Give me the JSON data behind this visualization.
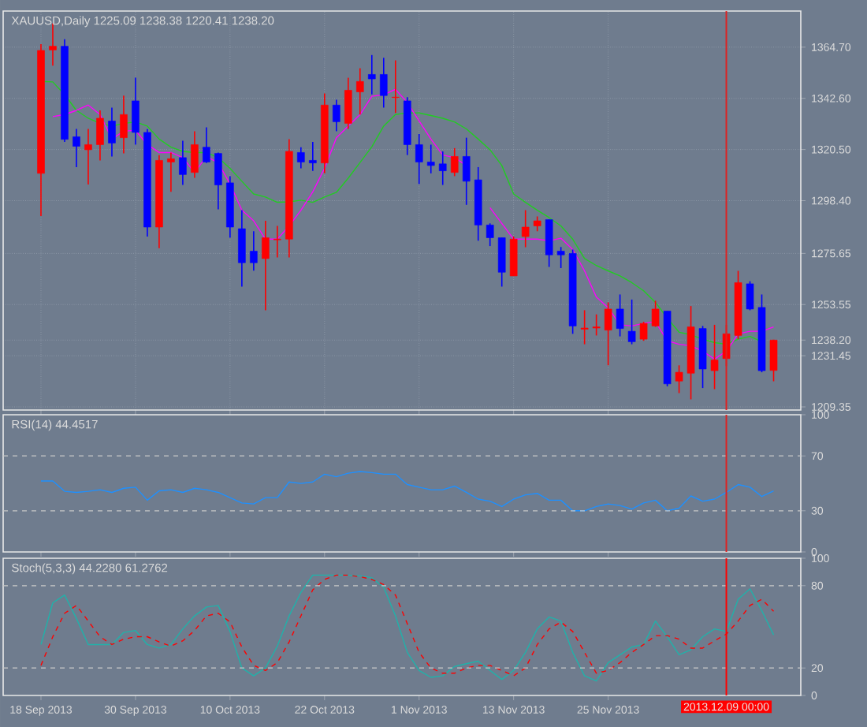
{
  "chart_data": [
    {
      "type": "candlestick",
      "title": "XAUUSD,Daily  1225.09 1238.38 1220.41 1238.20",
      "categories": [
        "18 Sep 2013",
        null,
        null,
        null,
        null,
        null,
        null,
        null,
        "30 Sep 2013",
        null,
        null,
        null,
        null,
        null,
        null,
        null,
        "10 Oct 2013",
        null,
        null,
        null,
        null,
        null,
        null,
        null,
        "22 Oct 2013",
        null,
        null,
        null,
        null,
        null,
        null,
        null,
        "1 Nov 2013",
        null,
        null,
        null,
        null,
        null,
        null,
        null,
        "13 Nov 2013",
        null,
        null,
        null,
        null,
        null,
        null,
        null,
        "25 Nov 2013",
        null,
        null,
        null,
        null,
        null,
        null,
        null,
        null,
        null,
        "2013.12.09 00:00",
        null,
        null,
        null,
        null
      ],
      "ohlc": [
        [
          1310.2,
          1366.0,
          1291.8,
          1363.3
        ],
        [
          1363.5,
          1374.9,
          1356.7,
          1365.1
        ],
        [
          1365.1,
          1368.1,
          1323.8,
          1324.9
        ],
        [
          1326.0,
          1329.4,
          1312.9,
          1321.9
        ],
        [
          1320.4,
          1329.4,
          1305.4,
          1322.6
        ],
        [
          1322.6,
          1337.4,
          1315.8,
          1334.0
        ],
        [
          1332.8,
          1338.6,
          1317.5,
          1323.3
        ],
        [
          1325.6,
          1343.8,
          1318.8,
          1335.6
        ],
        [
          1341.5,
          1351.5,
          1322.6,
          1327.9
        ],
        [
          1327.9,
          1329.3,
          1282.9,
          1287.0
        ],
        [
          1287.0,
          1318.1,
          1277.9,
          1315.8
        ],
        [
          1315.1,
          1319.2,
          1302.2,
          1316.5
        ],
        [
          1317.0,
          1324.3,
          1305.2,
          1309.7
        ],
        [
          1310.6,
          1328.4,
          1308.3,
          1322.6
        ],
        [
          1321.5,
          1330.1,
          1314.7,
          1315.1
        ],
        [
          1318.8,
          1319.2,
          1294.7,
          1305.2
        ],
        [
          1306.1,
          1309.0,
          1282.4,
          1287.0
        ],
        [
          1286.3,
          1294.3,
          1261.3,
          1271.6
        ],
        [
          1276.6,
          1285.2,
          1268.2,
          1271.6
        ],
        [
          1273.4,
          1289.7,
          1251.1,
          1282.4
        ],
        [
          1281.5,
          1287.5,
          1273.9,
          1281.8
        ],
        [
          1281.8,
          1325.0,
          1273.9,
          1319.7
        ],
        [
          1319.2,
          1321.5,
          1312.4,
          1315.1
        ],
        [
          1315.8,
          1323.8,
          1311.3,
          1314.7
        ],
        [
          1314.7,
          1344.7,
          1310.2,
          1339.7
        ],
        [
          1339.7,
          1342.0,
          1328.4,
          1332.5
        ],
        [
          1331.8,
          1351.5,
          1329.4,
          1346.1
        ],
        [
          1345.4,
          1355.6,
          1335.6,
          1349.9
        ],
        [
          1352.9,
          1361.3,
          1344.3,
          1351.0
        ],
        [
          1352.9,
          1360.1,
          1338.6,
          1343.8
        ],
        [
          1342.9,
          1359.0,
          1336.3,
          1343.1
        ],
        [
          1341.5,
          1343.1,
          1318.1,
          1322.6
        ],
        [
          1322.6,
          1327.2,
          1305.6,
          1315.1
        ],
        [
          1315.1,
          1322.6,
          1310.2,
          1313.6
        ],
        [
          1314.3,
          1319.7,
          1305.2,
          1311.3
        ],
        [
          1310.6,
          1321.1,
          1309.0,
          1317.5
        ],
        [
          1317.5,
          1325.6,
          1296.6,
          1306.8
        ],
        [
          1307.4,
          1312.9,
          1281.1,
          1287.9
        ],
        [
          1287.9,
          1288.6,
          1278.8,
          1282.4
        ],
        [
          1282.4,
          1282.4,
          1261.3,
          1267.5
        ],
        [
          1265.9,
          1282.9,
          1265.9,
          1281.8
        ],
        [
          1282.9,
          1294.3,
          1278.3,
          1287.0
        ],
        [
          1287.5,
          1291.6,
          1285.2,
          1289.7
        ],
        [
          1290.2,
          1290.2,
          1269.8,
          1275.0
        ],
        [
          1276.6,
          1278.4,
          1269.3,
          1275.0
        ],
        [
          1275.6,
          1277.3,
          1240.9,
          1244.3
        ],
        [
          1242.9,
          1251.1,
          1236.4,
          1243.4
        ],
        [
          1243.4,
          1249.3,
          1240.2,
          1243.9
        ],
        [
          1242.5,
          1254.5,
          1227.3,
          1251.6
        ],
        [
          1251.6,
          1257.9,
          1239.8,
          1243.2
        ],
        [
          1242.0,
          1255.7,
          1236.4,
          1237.5
        ],
        [
          1238.6,
          1246.1,
          1237.9,
          1245.4
        ],
        [
          1244.3,
          1255.2,
          1243.9,
          1251.6
        ],
        [
          1250.7,
          1250.7,
          1218.2,
          1219.3
        ],
        [
          1220.5,
          1227.3,
          1215.3,
          1224.3
        ],
        [
          1223.9,
          1252.9,
          1212.6,
          1243.9
        ],
        [
          1243.2,
          1244.3,
          1217.5,
          1225.7
        ],
        [
          1225.0,
          1244.8,
          1217.0,
          1229.6
        ],
        [
          1230.2,
          1244.8,
          1227.0,
          1240.9
        ],
        [
          1240.2,
          1268.1,
          1238.6,
          1263.0
        ],
        [
          1262.5,
          1263.6,
          1251.1,
          1251.6
        ],
        [
          1252.3,
          1257.9,
          1224.3,
          1225.0
        ],
        [
          1225.09,
          1238.38,
          1220.41,
          1238.2
        ]
      ],
      "colors": [
        "#ff0000",
        "#ff0000",
        "#0000ff",
        "#0000ff",
        "#ff0000",
        "#ff0000",
        "#0000ff",
        "#ff0000",
        "#0000ff",
        "#0000ff",
        "#ff0000",
        "#ff0000",
        "#0000ff",
        "#ff0000",
        "#0000ff",
        "#0000ff",
        "#0000ff",
        "#0000ff",
        "#0000ff",
        "#ff0000",
        "#ff0000",
        "#ff0000",
        "#0000ff",
        "#0000ff",
        "#ff0000",
        "#0000ff",
        "#ff0000",
        "#ff0000",
        "#0000ff",
        "#0000ff",
        "#ff0000",
        "#0000ff",
        "#0000ff",
        "#0000ff",
        "#0000ff",
        "#ff0000",
        "#0000ff",
        "#0000ff",
        "#0000ff",
        "#0000ff",
        "#ff0000",
        "#ff0000",
        "#ff0000",
        "#0000ff",
        "#0000ff",
        "#0000ff",
        "#ff0000",
        "#ff0000",
        "#ff0000",
        "#0000ff",
        "#0000ff",
        "#ff0000",
        "#ff0000",
        "#0000ff",
        "#ff0000",
        "#ff0000",
        "#0000ff",
        "#ff0000",
        "#ff0000",
        "#ff0000",
        "#0000ff",
        "#0000ff",
        "#ff0000"
      ],
      "series": [
        {
          "type": "line",
          "color": "#22cc22",
          "values": [
            1349.9,
            1349.7,
            1344.2,
            1337.4,
            1334.0,
            1331.8,
            1330.6,
            1331.8,
            1332.4,
            1330.6,
            1325.0,
            1321.5,
            1319.7,
            1319.2,
            1319.2,
            1317.0,
            1312.4,
            1306.8,
            1301.3,
            1300.0,
            1297.7,
            1297.9,
            1298.6,
            1297.7,
            1300.0,
            1302.0,
            1308.1,
            1314.9,
            1321.7,
            1330.6,
            1335.6,
            1336.3,
            1336.3,
            1335.2,
            1334.0,
            1332.4,
            1329.4,
            1325.0,
            1320.4,
            1313.6,
            1301.3,
            1297.7,
            1294.3,
            1291.1,
            1287.5,
            1281.8,
            1273.4,
            1270.4,
            1268.1,
            1265.9,
            1263.0,
            1259.5,
            1254.5,
            1247.7,
            1241.6,
            1240.5,
            1238.6,
            1237.1,
            1236.4,
            1238.6,
            1239.8,
            1237.5,
            null
          ]
        },
        {
          "type": "line",
          "color": "#ff00ff",
          "values": [
            null,
            1334.7,
            1335.6,
            1337.4,
            1339.7,
            1335.6,
            1325.0,
            1328.4,
            1328.8,
            1322.6,
            1319.2,
            1319.2,
            1317.0,
            1310.6,
            1317.5,
            1314.7,
            1305.6,
            1294.3,
            1289.7,
            1281.8,
            1281.8,
            1287.5,
            1294.3,
            1302.2,
            1312.4,
            1325.6,
            1330.6,
            1335.6,
            1343.5,
            1344.2,
            1346.5,
            1340.8,
            1332.8,
            1325.0,
            1318.1,
            1317.0,
            1313.6,
            null,
            1295.4,
            1288.6,
            1281.8,
            1281.8,
            1281.8,
            1281.1,
            1282.2,
            1277.3,
            1268.1,
            1256.8,
            1252.2,
            1244.8,
            1244.3,
            1245.4,
            1246.1,
            1237.9,
            1236.4,
            1235.7,
            1233.4,
            1230.0,
            1233.4,
            1240.9,
            1242.0,
            1242.0,
            1243.9
          ]
        }
      ],
      "ylim": [
        1208.0,
        1380.3
      ],
      "yticks": [
        {
          "value": 1209.35,
          "label": "1209.35"
        },
        {
          "value": 1231.45,
          "label": "1231.45"
        },
        {
          "value": 1238.2,
          "label": "1238.20"
        },
        {
          "value": 1253.55,
          "label": "1253.55"
        },
        {
          "value": 1275.65,
          "label": "1275.65"
        },
        {
          "value": 1298.4,
          "label": "1298.40"
        },
        {
          "value": 1320.5,
          "label": "1320.50"
        },
        {
          "value": 1342.6,
          "label": "1342.60"
        },
        {
          "value": 1364.7,
          "label": "1364.70"
        }
      ],
      "grid": true,
      "tick_labels": "y",
      "ref_lines": [
        {
          "axis": "x",
          "value": "2013.12.09 00:00",
          "color": "#dd2222"
        }
      ]
    },
    {
      "type": "line",
      "title": "RSI(14) 44.4517",
      "categories": [
        "18 Sep 2013",
        null,
        null,
        null,
        null,
        null,
        null,
        null,
        "30 Sep 2013",
        null,
        null,
        null,
        null,
        null,
        null,
        null,
        "10 Oct 2013",
        null,
        null,
        null,
        null,
        null,
        null,
        null,
        "22 Oct 2013",
        null,
        null,
        null,
        null,
        null,
        null,
        null,
        "1 Nov 2013",
        null,
        null,
        null,
        null,
        null,
        null,
        null,
        "13 Nov 2013",
        null,
        null,
        null,
        null,
        null,
        null,
        null,
        "25 Nov 2013",
        null,
        null,
        null,
        null,
        null,
        null,
        null,
        null,
        null,
        "2013.12.09 00:00",
        null,
        null,
        null,
        null
      ],
      "series": [
        {
          "color": "#1e90ff",
          "values": [
            51.7,
            51.7,
            44.2,
            43.4,
            44.2,
            45.3,
            43.4,
            46.4,
            47.2,
            37.7,
            44.5,
            45.3,
            43.4,
            46.4,
            45.3,
            43.4,
            39.6,
            35.7,
            35.0,
            39.6,
            39.6,
            51.0,
            49.9,
            51.0,
            56.7,
            54.8,
            57.4,
            58.6,
            57.8,
            56.7,
            56.7,
            49.1,
            47.2,
            45.3,
            45.3,
            48.0,
            43.4,
            38.5,
            37.0,
            33.1,
            38.5,
            41.6,
            42.7,
            37.7,
            37.7,
            30.0,
            30.0,
            33.1,
            35.0,
            33.8,
            31.2,
            35.7,
            37.7,
            30.0,
            31.9,
            40.8,
            37.0,
            38.5,
            43.4,
            49.1,
            47.2,
            40.4,
            44.5
          ]
        }
      ],
      "ylim": [
        0,
        100
      ],
      "yticks": [
        0,
        30,
        70,
        100
      ],
      "tick_labels": "y",
      "ref_lines": [
        {
          "axis": "y",
          "value": 70,
          "color": "#c8c8c8",
          "line_style": "dashed"
        },
        {
          "axis": "y",
          "value": 30,
          "color": "#c8c8c8",
          "line_style": "dashed"
        },
        {
          "axis": "x",
          "value": "2013.12.09 00:00",
          "color": "#dd2222"
        }
      ]
    },
    {
      "type": "line",
      "title": "Stoch(5,3,3) 44.2280 61.2762",
      "categories": [
        "18 Sep 2013",
        null,
        null,
        null,
        null,
        null,
        null,
        null,
        "30 Sep 2013",
        null,
        null,
        null,
        null,
        null,
        null,
        null,
        "10 Oct 2013",
        null,
        null,
        null,
        null,
        null,
        null,
        null,
        "22 Oct 2013",
        null,
        null,
        null,
        null,
        null,
        null,
        null,
        "1 Nov 2013",
        null,
        null,
        null,
        null,
        null,
        null,
        null,
        "13 Nov 2013",
        null,
        null,
        null,
        null,
        null,
        null,
        null,
        "25 Nov 2013",
        null,
        null,
        null,
        null,
        null,
        null,
        null,
        null,
        null,
        "2013.12.09 00:00",
        null,
        null,
        null,
        null
      ],
      "series": [
        {
          "color": "#20b2aa",
          "values": [
            37.1,
            67.5,
            73.2,
            56.1,
            37.1,
            37.1,
            37.1,
            45.9,
            47.3,
            37.1,
            34.5,
            37.1,
            48.5,
            58.0,
            64.4,
            65.6,
            46.6,
            20.0,
            14.3,
            20.0,
            35.9,
            58.0,
            75.1,
            87.7,
            87.7,
            87.7,
            87.7,
            87.3,
            85.7,
            78.9,
            58.0,
            31.4,
            18.2,
            13.2,
            14.3,
            21.1,
            23.1,
            25.0,
            18.2,
            11.7,
            18.2,
            31.4,
            48.5,
            57.2,
            54.2,
            31.4,
            14.3,
            10.5,
            23.9,
            29.6,
            35.3,
            37.1,
            54.2,
            42.8,
            29.6,
            33.3,
            42.8,
            48.5,
            46.6,
            70.1,
            77.7,
            61.8,
            44.2
          ]
        },
        {
          "color": "#ff0000",
          "line_style": "dashed",
          "values": [
            21.9,
            42.8,
            59.9,
            65.6,
            54.2,
            42.8,
            37.1,
            41.0,
            42.8,
            42.8,
            39.0,
            35.9,
            39.8,
            47.3,
            58.0,
            59.9,
            53.5,
            35.3,
            21.9,
            18.2,
            23.9,
            39.0,
            58.0,
            77.0,
            84.6,
            87.7,
            87.7,
            86.6,
            84.6,
            80.8,
            73.2,
            52.3,
            31.4,
            20.0,
            16.2,
            16.2,
            20.0,
            21.9,
            21.9,
            18.2,
            14.3,
            20.0,
            37.1,
            48.5,
            53.5,
            46.6,
            31.4,
            16.2,
            18.2,
            23.9,
            31.4,
            37.1,
            43.6,
            43.6,
            41.0,
            34.5,
            34.5,
            39.8,
            44.7,
            54.2,
            65.6,
            70.1,
            61.3
          ]
        }
      ],
      "ylim": [
        0,
        100
      ],
      "yticks": [
        0,
        20,
        80,
        100
      ],
      "ref_lines": [
        {
          "axis": "y",
          "value": 80,
          "color": "#c8c8c8",
          "line_style": "dashed"
        },
        {
          "axis": "y",
          "value": 20,
          "color": "#c8c8c8",
          "line_style": "dashed"
        },
        {
          "axis": "x",
          "value": "2013.12.09 00:00",
          "color": "#ff0000"
        }
      ]
    }
  ]
}
